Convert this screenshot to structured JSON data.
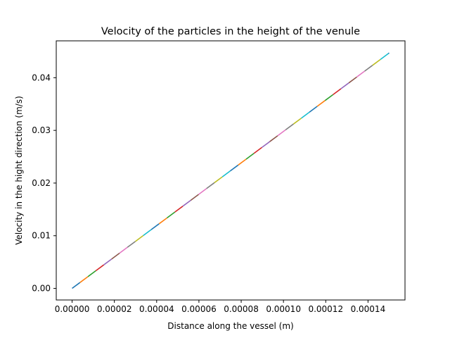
{
  "chart_data": {
    "type": "line",
    "title": "Velocity of the particles in the height of the venule",
    "xlabel": "Distance along the vessel (m)",
    "ylabel": "Velocity in the hight direction (m/s)",
    "xlim": [
      -7.5e-06,
      0.0001575
    ],
    "ylim": [
      -0.0022,
      0.047
    ],
    "xticks": [
      {
        "value": 0.0,
        "label": "0.00000"
      },
      {
        "value": 2e-05,
        "label": "0.00002"
      },
      {
        "value": 4e-05,
        "label": "0.00004"
      },
      {
        "value": 6e-05,
        "label": "0.00006"
      },
      {
        "value": 8e-05,
        "label": "0.00008"
      },
      {
        "value": 0.0001,
        "label": "0.00010"
      },
      {
        "value": 0.00012,
        "label": "0.00012"
      },
      {
        "value": 0.00014,
        "label": "0.00014"
      }
    ],
    "yticks": [
      {
        "value": 0.0,
        "label": "0.00"
      },
      {
        "value": 0.01,
        "label": "0.01"
      },
      {
        "value": 0.02,
        "label": "0.02"
      },
      {
        "value": 0.03,
        "label": "0.03"
      },
      {
        "value": 0.04,
        "label": "0.04"
      }
    ],
    "grid": false,
    "legend": "none",
    "series": [
      {
        "color": "#1f77b4",
        "x": [
          0.0,
          0.00015
        ],
        "y": [
          0.0,
          0.0447
        ]
      },
      {
        "color": "#ff7f0e",
        "x": [
          0.0,
          0.00015
        ],
        "y": [
          0.0,
          0.0447
        ]
      },
      {
        "color": "#2ca02c",
        "x": [
          0.0,
          0.00015
        ],
        "y": [
          0.0,
          0.0447
        ]
      },
      {
        "color": "#d62728",
        "x": [
          0.0,
          0.00015
        ],
        "y": [
          0.0,
          0.0447
        ]
      },
      {
        "color": "#9467bd",
        "x": [
          0.0,
          0.00015
        ],
        "y": [
          0.0,
          0.0447
        ]
      },
      {
        "color": "#8c564b",
        "x": [
          0.0,
          0.00015
        ],
        "y": [
          0.0,
          0.0447
        ]
      },
      {
        "color": "#e377c2",
        "x": [
          0.0,
          0.00015
        ],
        "y": [
          0.0,
          0.0447
        ]
      },
      {
        "color": "#7f7f7f",
        "x": [
          0.0,
          0.00015
        ],
        "y": [
          0.0,
          0.0447
        ]
      },
      {
        "color": "#bcbd22",
        "x": [
          0.0,
          0.00015
        ],
        "y": [
          0.0,
          0.0447
        ]
      },
      {
        "color": "#17becf",
        "x": [
          0.0,
          0.00015
        ],
        "y": [
          0.0,
          0.0447
        ]
      }
    ]
  }
}
